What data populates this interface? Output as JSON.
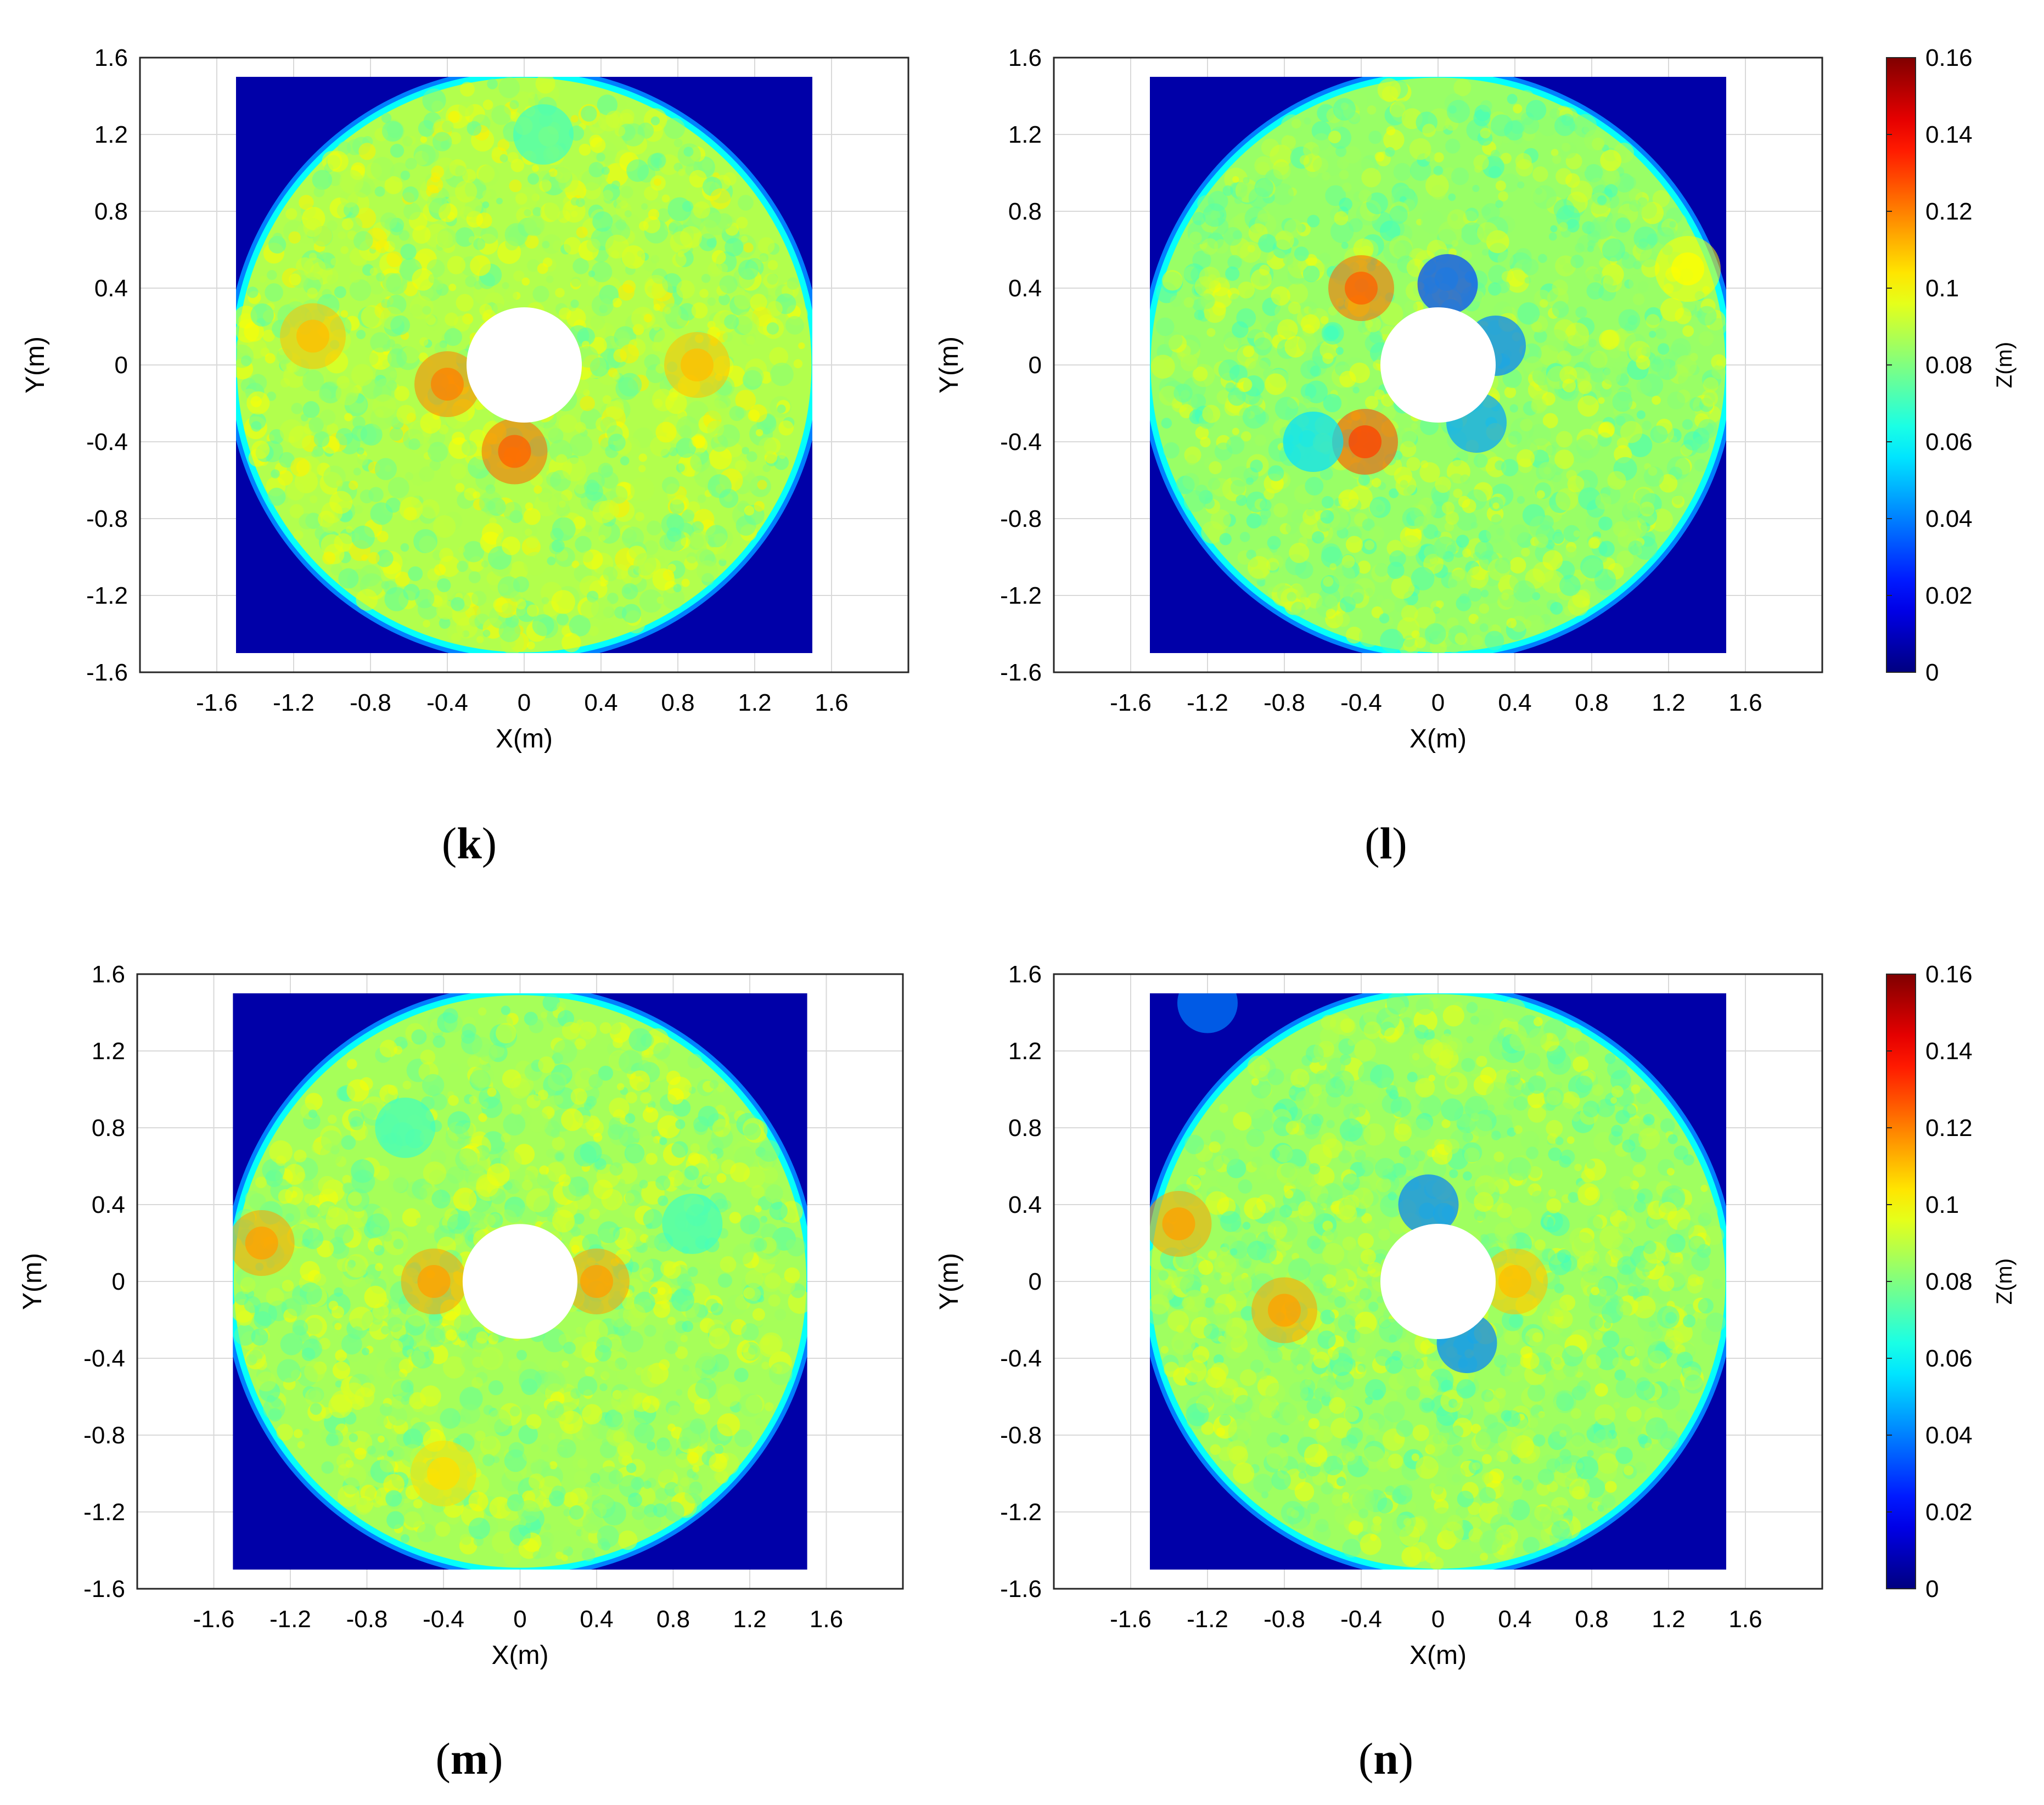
{
  "colors": {
    "background": "#ffffff",
    "axis": "#000000",
    "grid": "#d9d9d9",
    "scan_edge": "#0000a8",
    "hole": "#ffffff",
    "colormap": "jet"
  },
  "colorbar": {
    "label": "Z(m)",
    "range": [
      0,
      0.16
    ],
    "tick_values": [
      0,
      0.02,
      0.04,
      0.06,
      0.08,
      0.1,
      0.12,
      0.14,
      0.16
    ],
    "tick_labels": [
      "0",
      "0.02",
      "0.04",
      "0.06",
      "0.08",
      "0.1",
      "0.12",
      "0.14",
      "0.16"
    ]
  },
  "chart_data": [
    {
      "type": "heatmap",
      "panel": "k",
      "panel_label": "k",
      "title": "",
      "xlabel": "X(m)",
      "ylabel": "Y(m)",
      "xlim": [
        -2.0,
        2.0
      ],
      "ylim": [
        -1.6,
        1.6
      ],
      "x_ticks": [
        "-1.6",
        "-1.2",
        "-0.8",
        "-0.4",
        "0",
        "0.4",
        "0.8",
        "1.2",
        "1.6"
      ],
      "y_ticks": [
        "1.6",
        "1.2",
        "0.8",
        "0.4",
        "0",
        "-0.4",
        "-0.8",
        "-1.2",
        "-1.6"
      ],
      "grid": true,
      "data_extent": {
        "x": [
          -1.5,
          1.5
        ],
        "y": [
          -1.5,
          1.5
        ]
      },
      "pile_center": [
        0,
        0
      ],
      "pile_radius": 0.3,
      "scour_region_radius": 1.55,
      "mean_z": 0.088,
      "hotspots": [
        {
          "x": -0.05,
          "y": -0.45,
          "z": 0.125
        },
        {
          "x": -0.4,
          "y": -0.1,
          "z": 0.12
        },
        {
          "x": -1.1,
          "y": 0.15,
          "z": 0.11
        },
        {
          "x": 0.9,
          "y": 0.0,
          "z": 0.11
        }
      ],
      "coldspots": [
        {
          "x": 0.1,
          "y": 1.2,
          "z": 0.07
        }
      ]
    },
    {
      "type": "heatmap",
      "panel": "l",
      "panel_label": "l",
      "title": "",
      "xlabel": "X(m)",
      "ylabel": "Y(m)",
      "xlim": [
        -2.0,
        2.0
      ],
      "ylim": [
        -1.6,
        1.6
      ],
      "x_ticks": [
        "-1.6",
        "-1.2",
        "-0.8",
        "-0.4",
        "0",
        "0.4",
        "0.8",
        "1.2",
        "1.6"
      ],
      "y_ticks": [
        "1.6",
        "1.2",
        "0.8",
        "0.4",
        "0",
        "-0.4",
        "-0.8",
        "-1.2",
        "-1.6"
      ],
      "grid": true,
      "data_extent": {
        "x": [
          -1.5,
          1.5
        ],
        "y": [
          -1.5,
          1.5
        ]
      },
      "pile_center": [
        0,
        0
      ],
      "pile_radius": 0.3,
      "scour_region_radius": 1.55,
      "mean_z": 0.084,
      "hotspots": [
        {
          "x": -0.38,
          "y": -0.4,
          "z": 0.13
        },
        {
          "x": -0.4,
          "y": 0.4,
          "z": 0.125
        },
        {
          "x": 1.3,
          "y": 0.5,
          "z": 0.1
        }
      ],
      "coldspots": [
        {
          "x": 0.05,
          "y": 0.42,
          "z": 0.03
        },
        {
          "x": 0.3,
          "y": 0.1,
          "z": 0.04
        },
        {
          "x": 0.2,
          "y": -0.3,
          "z": 0.045
        },
        {
          "x": -0.65,
          "y": -0.4,
          "z": 0.055
        }
      ]
    },
    {
      "type": "heatmap",
      "panel": "m",
      "panel_label": "m",
      "title": "",
      "xlabel": "X(m)",
      "ylabel": "Y(m)",
      "xlim": [
        -2.0,
        2.0
      ],
      "ylim": [
        -1.6,
        1.6
      ],
      "x_ticks": [
        "-1.6",
        "-1.2",
        "-0.8",
        "-0.4",
        "0",
        "0.4",
        "0.8",
        "1.2",
        "1.6"
      ],
      "y_ticks": [
        "1.6",
        "1.2",
        "0.8",
        "0.4",
        "0",
        "-0.4",
        "-0.8",
        "-1.2",
        "-1.6"
      ],
      "grid": true,
      "data_extent": {
        "x": [
          -1.5,
          1.5
        ],
        "y": [
          -1.5,
          1.5
        ]
      },
      "pile_center": [
        0,
        0
      ],
      "pile_radius": 0.3,
      "scour_region_radius": 1.55,
      "mean_z": 0.086,
      "hotspots": [
        {
          "x": -1.35,
          "y": 0.2,
          "z": 0.115
        },
        {
          "x": 0.4,
          "y": 0.0,
          "z": 0.115
        },
        {
          "x": -0.45,
          "y": 0.0,
          "z": 0.115
        },
        {
          "x": -0.4,
          "y": -1.0,
          "z": 0.105
        }
      ],
      "coldspots": [
        {
          "x": 0.9,
          "y": 0.3,
          "z": 0.07
        },
        {
          "x": -0.6,
          "y": 0.8,
          "z": 0.07
        }
      ]
    },
    {
      "type": "heatmap",
      "panel": "n",
      "panel_label": "n",
      "title": "",
      "xlabel": "X(m)",
      "ylabel": "Y(m)",
      "xlim": [
        -2.0,
        2.0
      ],
      "ylim": [
        -1.6,
        1.6
      ],
      "x_ticks": [
        "-1.6",
        "-1.2",
        "-0.8",
        "-0.4",
        "0",
        "0.4",
        "0.8",
        "1.2",
        "1.6"
      ],
      "y_ticks": [
        "1.6",
        "1.2",
        "0.8",
        "0.4",
        "0",
        "-0.4",
        "-0.8",
        "-1.2",
        "-1.6"
      ],
      "grid": true,
      "data_extent": {
        "x": [
          -1.5,
          1.5
        ],
        "y": [
          -1.5,
          1.5
        ]
      },
      "pile_center": [
        0,
        0
      ],
      "pile_radius": 0.3,
      "scour_region_radius": 1.55,
      "mean_z": 0.085,
      "hotspots": [
        {
          "x": -1.35,
          "y": 0.3,
          "z": 0.115
        },
        {
          "x": -0.8,
          "y": -0.15,
          "z": 0.115
        },
        {
          "x": 0.4,
          "y": 0.0,
          "z": 0.11
        }
      ],
      "coldspots": [
        {
          "x": -0.05,
          "y": 0.4,
          "z": 0.04
        },
        {
          "x": 0.15,
          "y": -0.32,
          "z": 0.04
        },
        {
          "x": -1.2,
          "y": 1.45,
          "z": 0.04
        }
      ]
    }
  ]
}
